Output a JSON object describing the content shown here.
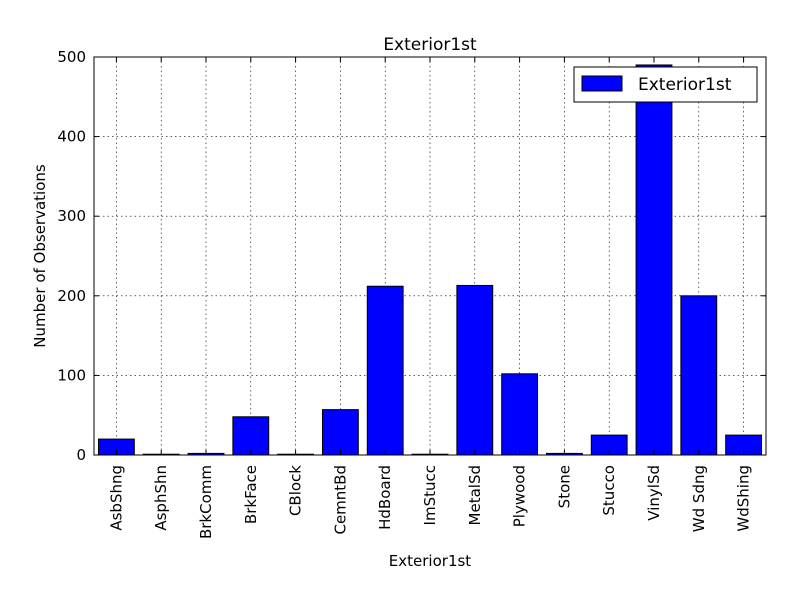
{
  "chart_data": {
    "type": "bar",
    "title": "Exterior1st",
    "xlabel": "Exterior1st",
    "ylabel": "Number of Observations",
    "categories": [
      "AsbShng",
      "AsphShn",
      "BrkComm",
      "BrkFace",
      "CBlock",
      "CemntBd",
      "HdBoard",
      "ImStucc",
      "MetalSd",
      "Plywood",
      "Stone",
      "Stucco",
      "VinylSd",
      "Wd Sdng",
      "WdShing"
    ],
    "series": [
      {
        "name": "Exterior1st",
        "color": "#0000ff",
        "values": [
          20,
          1,
          2,
          48,
          1,
          57,
          212,
          1,
          213,
          102,
          2,
          25,
          490,
          200,
          25
        ]
      }
    ],
    "ylim": [
      0,
      500
    ],
    "yticks": [
      "0",
      "100",
      "200",
      "300",
      "400",
      "500"
    ],
    "grid": true,
    "legend": {
      "position": "top-right",
      "label": "Exterior1st"
    }
  }
}
